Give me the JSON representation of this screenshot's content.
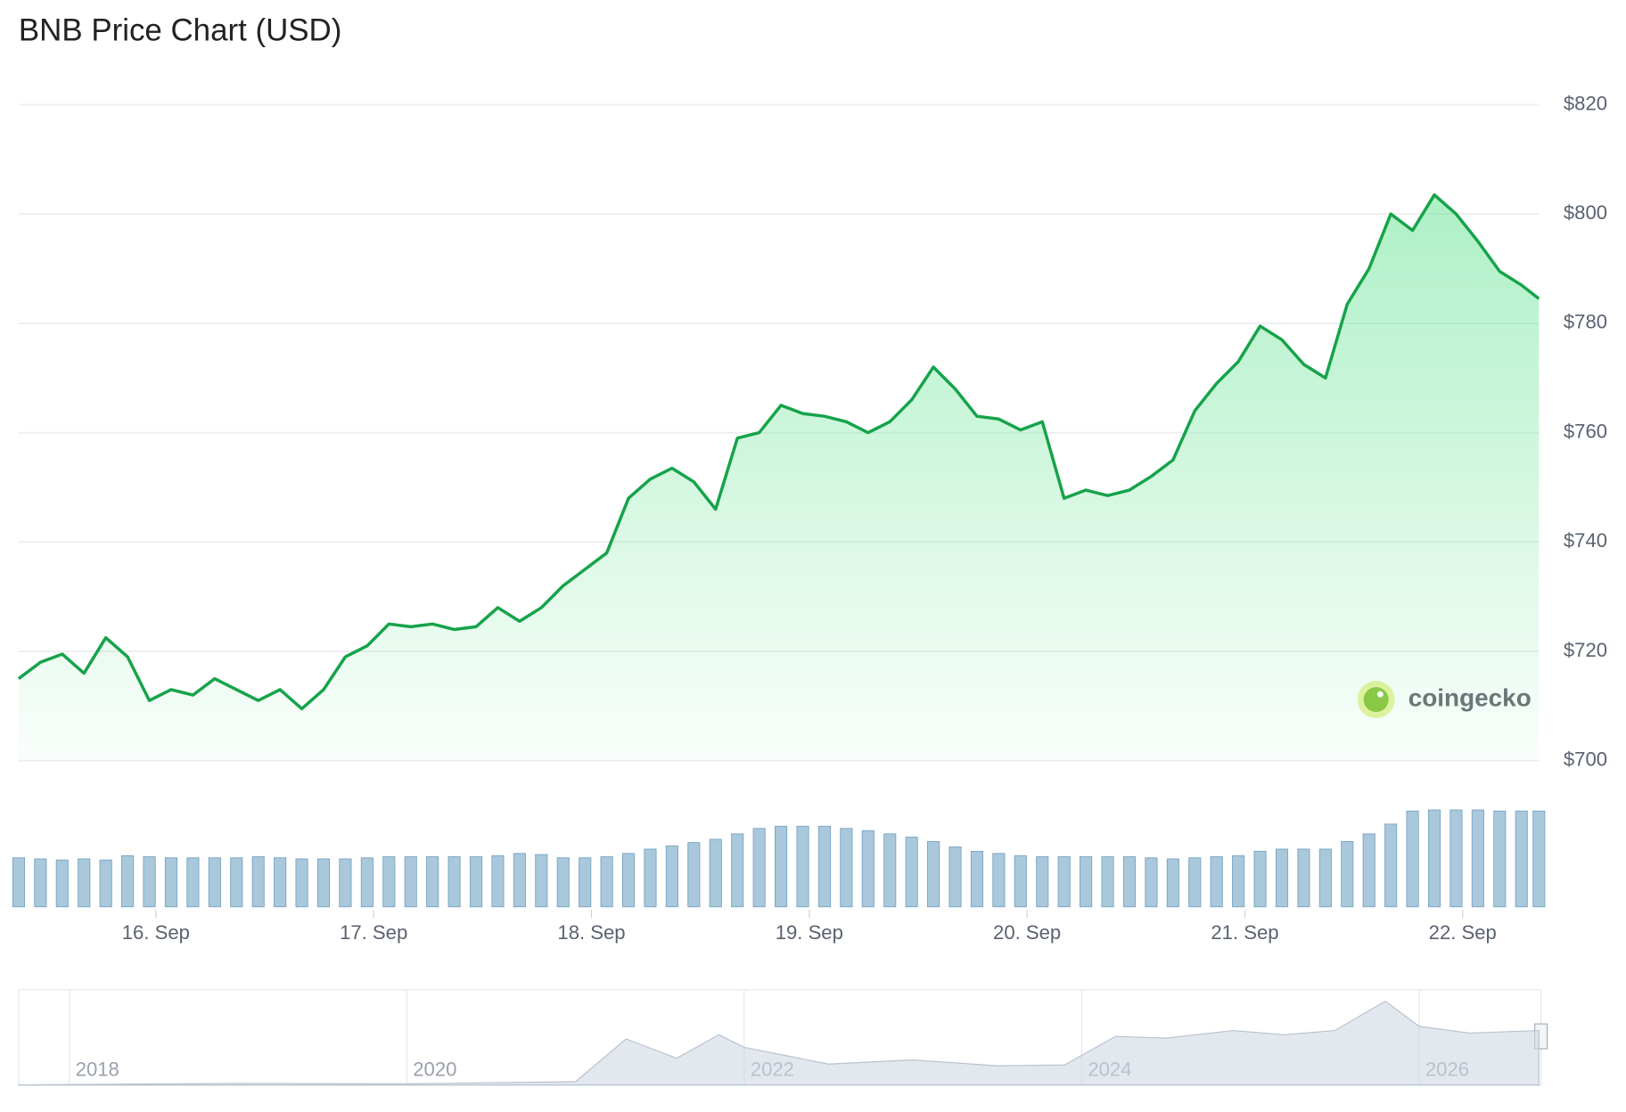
{
  "chart_data": {
    "type": "line",
    "title": "BNB Price Chart (USD)",
    "watermark": "coingecko",
    "color": "#16a34a",
    "fill": "#4ade80",
    "grid": true,
    "ylim": [
      700,
      820
    ],
    "yticks": [
      {
        "value": 700,
        "label": "$700"
      },
      {
        "value": 720,
        "label": "$720"
      },
      {
        "value": 740,
        "label": "$740"
      },
      {
        "value": 760,
        "label": "$760"
      },
      {
        "value": 780,
        "label": "$780"
      },
      {
        "value": 800,
        "label": "$800"
      },
      {
        "value": 820,
        "label": "$820"
      }
    ],
    "xlim": [
      15.37,
      22.35
    ],
    "xticks": [
      {
        "value": 16,
        "label": "16. Sep"
      },
      {
        "value": 17,
        "label": "17. Sep"
      },
      {
        "value": 18,
        "label": "18. Sep"
      },
      {
        "value": 19,
        "label": "19. Sep"
      },
      {
        "value": 20,
        "label": "20. Sep"
      },
      {
        "value": 21,
        "label": "21. Sep"
      },
      {
        "value": 22,
        "label": "22. Sep"
      }
    ],
    "x": [
      15.37,
      15.47,
      15.57,
      15.67,
      15.77,
      15.87,
      15.97,
      16.07,
      16.17,
      16.27,
      16.37,
      16.47,
      16.57,
      16.67,
      16.77,
      16.87,
      16.97,
      17.07,
      17.17,
      17.27,
      17.37,
      17.47,
      17.57,
      17.67,
      17.77,
      17.87,
      17.97,
      18.07,
      18.17,
      18.27,
      18.37,
      18.47,
      18.57,
      18.67,
      18.77,
      18.87,
      18.97,
      19.07,
      19.17,
      19.27,
      19.37,
      19.47,
      19.57,
      19.67,
      19.77,
      19.87,
      19.97,
      20.07,
      20.17,
      20.27,
      20.37,
      20.47,
      20.57,
      20.67,
      20.77,
      20.87,
      20.97,
      21.07,
      21.17,
      21.27,
      21.37,
      21.47,
      21.57,
      21.67,
      21.77,
      21.87,
      21.97,
      22.07,
      22.17,
      22.27,
      22.35
    ],
    "values": [
      715,
      718,
      719.5,
      716,
      722.5,
      719,
      711,
      713,
      712,
      715,
      713,
      711,
      713,
      709.5,
      713,
      719,
      721,
      725,
      724.5,
      725,
      724,
      724.5,
      728,
      725.5,
      728,
      732,
      735,
      738,
      748,
      751.5,
      753.5,
      751,
      746,
      759,
      760,
      765,
      763.5,
      763,
      762,
      760,
      762,
      766,
      772,
      768,
      763,
      762.5,
      760.5,
      762,
      748,
      749.5,
      748.5,
      749.5,
      752,
      755,
      764,
      769,
      773,
      779.5,
      777,
      772.5,
      770,
      783.5,
      790,
      800,
      797,
      803.5,
      800,
      795,
      789.5,
      787,
      784.5
    ],
    "volume": {
      "type": "bar",
      "color": "#a9c8dc",
      "ylim": [
        0,
        100
      ],
      "values": [
        45,
        44,
        43,
        44,
        43,
        47,
        46,
        45,
        45,
        45,
        45,
        46,
        45,
        44,
        44,
        44,
        45,
        46,
        46,
        46,
        46,
        46,
        47,
        49,
        48,
        45,
        45,
        46,
        49,
        53,
        56,
        59,
        62,
        67,
        72,
        74,
        74,
        74,
        72,
        70,
        67,
        64,
        60,
        55,
        51,
        49,
        47,
        46,
        46,
        46,
        46,
        46,
        45,
        44,
        45,
        46,
        47,
        51,
        53,
        53,
        53,
        60,
        67,
        76,
        88,
        89,
        89,
        89,
        88,
        88,
        88
      ]
    },
    "navigator": {
      "type": "area",
      "color": "#cfd8e3",
      "ylim": [
        0,
        1100
      ],
      "xlim": [
        2017.7,
        2026.71
      ],
      "xticks": [
        {
          "value": 2018,
          "label": "2018"
        },
        {
          "value": 2020,
          "label": "2020"
        },
        {
          "value": 2022,
          "label": "2022"
        },
        {
          "value": 2024,
          "label": "2024"
        },
        {
          "value": 2026,
          "label": "2026"
        }
      ],
      "x": [
        2017.7,
        2019,
        2020,
        2021,
        2021.3,
        2021.6,
        2021.85,
        2022,
        2022.5,
        2023,
        2023.5,
        2023.9,
        2024.2,
        2024.5,
        2024.9,
        2025.2,
        2025.5,
        2025.8,
        2026,
        2026.3,
        2026.71
      ],
      "values": [
        2,
        20,
        15,
        40,
        550,
        320,
        600,
        450,
        250,
        300,
        230,
        240,
        580,
        560,
        650,
        600,
        650,
        1000,
        700,
        620,
        650
      ]
    }
  }
}
